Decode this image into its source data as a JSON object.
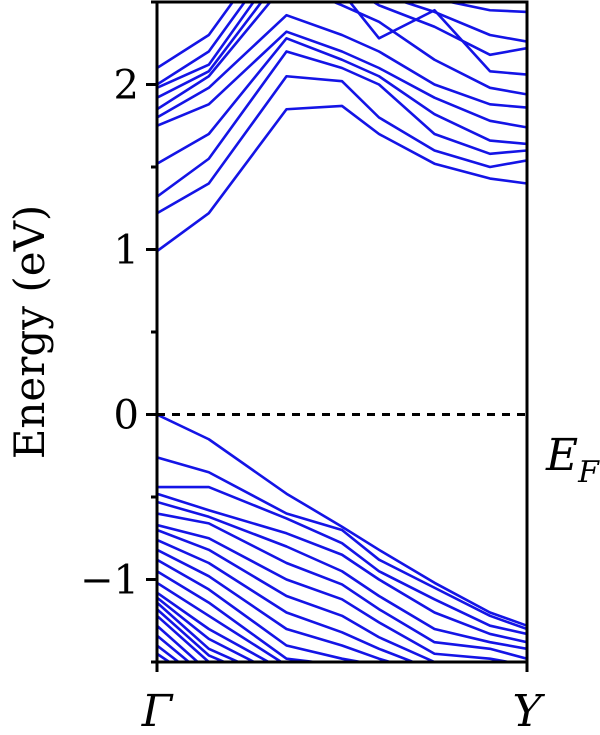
{
  "chart_data": {
    "type": "line",
    "title": "",
    "xlabel": "",
    "ylabel": "Energy (eV)",
    "ylim": [
      -1.5,
      2.5
    ],
    "xlim": [
      0,
      1
    ],
    "x_ticks": [
      {
        "x": 0,
        "label": "Γ"
      },
      {
        "x": 1,
        "label": "Y"
      }
    ],
    "y_ticks": [
      -1,
      0,
      1,
      2
    ],
    "y_tick_labels": [
      "−1",
      "0",
      "1",
      "2"
    ],
    "fermi_level": {
      "y": 0,
      "label_main": "E",
      "label_sub": "F",
      "style": "dashed"
    },
    "line_color": "#1414e6",
    "x": [
      0,
      0.14,
      0.35,
      0.5,
      0.6,
      0.75,
      0.9,
      1.0
    ],
    "conduction_bands": [
      [
        0.99,
        1.22,
        1.85,
        1.87,
        1.7,
        1.52,
        1.43,
        1.4
      ],
      [
        1.22,
        1.4,
        2.05,
        2.02,
        1.8,
        1.6,
        1.5,
        1.54
      ],
      [
        1.32,
        1.55,
        2.2,
        2.1,
        2.0,
        1.7,
        1.58,
        1.6
      ],
      [
        1.52,
        1.7,
        2.28,
        2.15,
        2.05,
        1.82,
        1.66,
        1.64
      ],
      [
        1.75,
        1.88,
        2.32,
        2.2,
        2.1,
        1.92,
        1.78,
        1.74
      ],
      [
        1.8,
        1.98,
        2.42,
        2.3,
        2.2,
        2.0,
        1.88,
        1.86
      ],
      [
        1.85,
        2.05,
        2.62,
        2.48,
        2.38,
        2.15,
        1.98,
        1.94
      ],
      [
        1.92,
        2.08,
        2.7,
        2.56,
        2.28,
        2.45,
        2.08,
        2.06
      ],
      [
        1.98,
        2.12,
        2.78,
        2.62,
        2.48,
        2.35,
        2.18,
        2.22
      ],
      [
        2.0,
        2.2,
        2.85,
        2.7,
        2.55,
        2.44,
        2.3,
        2.26
      ],
      [
        2.1,
        2.3,
        2.95,
        2.8,
        2.6,
        2.52,
        2.45,
        2.44
      ]
    ],
    "valence_bands": [
      [
        0.0,
        -0.15,
        -0.48,
        -0.68,
        -0.82,
        -1.02,
        -1.2,
        -1.28
      ],
      [
        -0.26,
        -0.35,
        -0.6,
        -0.7,
        -0.88,
        -1.05,
        -1.22,
        -1.3
      ],
      [
        -0.44,
        -0.44,
        -0.63,
        -0.78,
        -0.95,
        -1.12,
        -1.28,
        -1.33
      ],
      [
        -0.48,
        -0.58,
        -0.72,
        -0.85,
        -1.0,
        -1.2,
        -1.33,
        -1.38
      ],
      [
        -0.53,
        -0.62,
        -0.8,
        -0.95,
        -1.1,
        -1.3,
        -1.38,
        -1.42
      ],
      [
        -0.6,
        -0.66,
        -0.9,
        -1.03,
        -1.18,
        -1.38,
        -1.42,
        -1.48
      ],
      [
        -0.67,
        -0.75,
        -1.0,
        -1.12,
        -1.26,
        -1.45,
        -1.48,
        -1.52
      ],
      [
        -0.7,
        -0.82,
        -1.1,
        -1.22,
        -1.35,
        -1.5,
        -1.52,
        -1.56
      ],
      [
        -0.76,
        -0.9,
        -1.2,
        -1.32,
        -1.42,
        -1.55,
        -1.58,
        -1.6
      ],
      [
        -0.82,
        -0.98,
        -1.3,
        -1.4,
        -1.48,
        -1.58,
        -1.6,
        -1.62
      ],
      [
        -0.88,
        -1.06,
        -1.4,
        -1.48,
        -1.52,
        -1.6,
        -1.62,
        -1.64
      ],
      [
        -0.95,
        -1.14,
        -1.48,
        -1.52,
        -1.56,
        -1.62,
        -1.64,
        -1.66
      ],
      [
        -1.02,
        -1.22,
        -1.52,
        -1.56,
        -1.6,
        -1.64,
        -1.66,
        -1.68
      ],
      [
        -1.08,
        -1.3,
        -1.56,
        -1.6,
        -1.64,
        -1.66,
        -1.68,
        -1.7
      ],
      [
        -1.11,
        -1.36,
        -1.6,
        -1.64,
        -1.66,
        -1.68,
        -1.7,
        -1.72
      ],
      [
        -1.14,
        -1.42,
        -1.63,
        -1.66,
        -1.68,
        -1.7,
        -1.72,
        -1.74
      ],
      [
        -1.18,
        -1.46,
        -1.66,
        -1.68,
        -1.7,
        -1.72,
        -1.74,
        -1.76
      ],
      [
        -1.22,
        -1.5,
        -1.68,
        -1.7,
        -1.72,
        -1.74,
        -1.76,
        -1.78
      ],
      [
        -1.28,
        -1.56,
        -1.7,
        -1.72,
        -1.74,
        -1.76,
        -1.78,
        -1.8
      ],
      [
        -1.34,
        -1.6,
        -1.72,
        -1.74,
        -1.76,
        -1.78,
        -1.8,
        -1.82
      ],
      [
        -1.4,
        -1.64,
        -1.74,
        -1.76,
        -1.78,
        -1.8,
        -1.82,
        -1.84
      ],
      [
        -1.45,
        -1.66,
        -1.76,
        -1.78,
        -1.8,
        -1.82,
        -1.84,
        -1.86
      ]
    ]
  }
}
